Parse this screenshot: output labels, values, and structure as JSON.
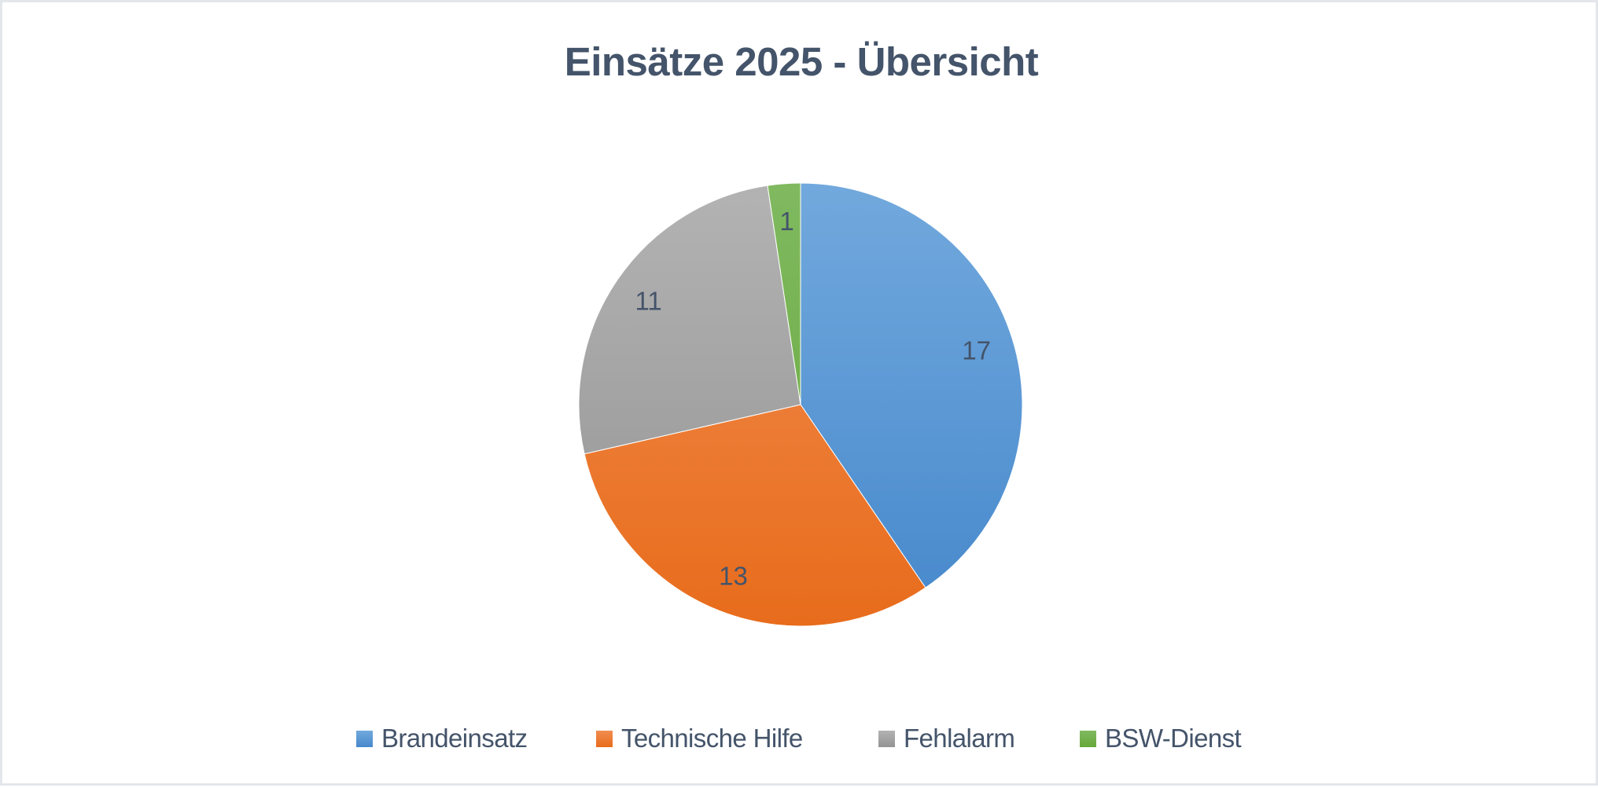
{
  "chart_data": {
    "type": "pie",
    "title": "Einsätze 2025 - Übersicht",
    "categories": [
      "Brandeinsatz",
      "Technische Hilfe",
      "Fehlalarm",
      "BSW-Dienst"
    ],
    "values": [
      17,
      13,
      11,
      1
    ],
    "data_labels": [
      "17",
      "13",
      "11",
      "1"
    ],
    "start_angle_deg": 0,
    "direction": "clockwise",
    "legend_position": "bottom",
    "colors": [
      "#5b9bd5",
      "#ed7d31",
      "#a5a5a5",
      "#70ad47"
    ],
    "gradients": [
      {
        "top": "#72a9dd",
        "bottom": "#4688cc"
      },
      {
        "top": "#f18d50",
        "bottom": "#e86c1c"
      },
      {
        "top": "#b3b3b3",
        "bottom": "#939393"
      },
      {
        "top": "#80b960",
        "bottom": "#66a83a"
      }
    ],
    "grid": false
  },
  "title": {
    "text": "Einsätze 2025 - Übersicht"
  },
  "legend": {
    "items": [
      {
        "label": "Brandeinsatz",
        "color": "#5b9bd5",
        "icon": "square-swatch-icon"
      },
      {
        "label": "Technische Hilfe",
        "color": "#ed7d31",
        "icon": "square-swatch-icon"
      },
      {
        "label": "Fehlalarm",
        "color": "#a5a5a5",
        "icon": "square-swatch-icon"
      },
      {
        "label": "BSW-Dienst",
        "color": "#70ad47",
        "icon": "square-swatch-icon"
      }
    ]
  },
  "colors": {
    "text": "#44546a",
    "border": "#e3e7ec",
    "background": "#ffffff"
  }
}
